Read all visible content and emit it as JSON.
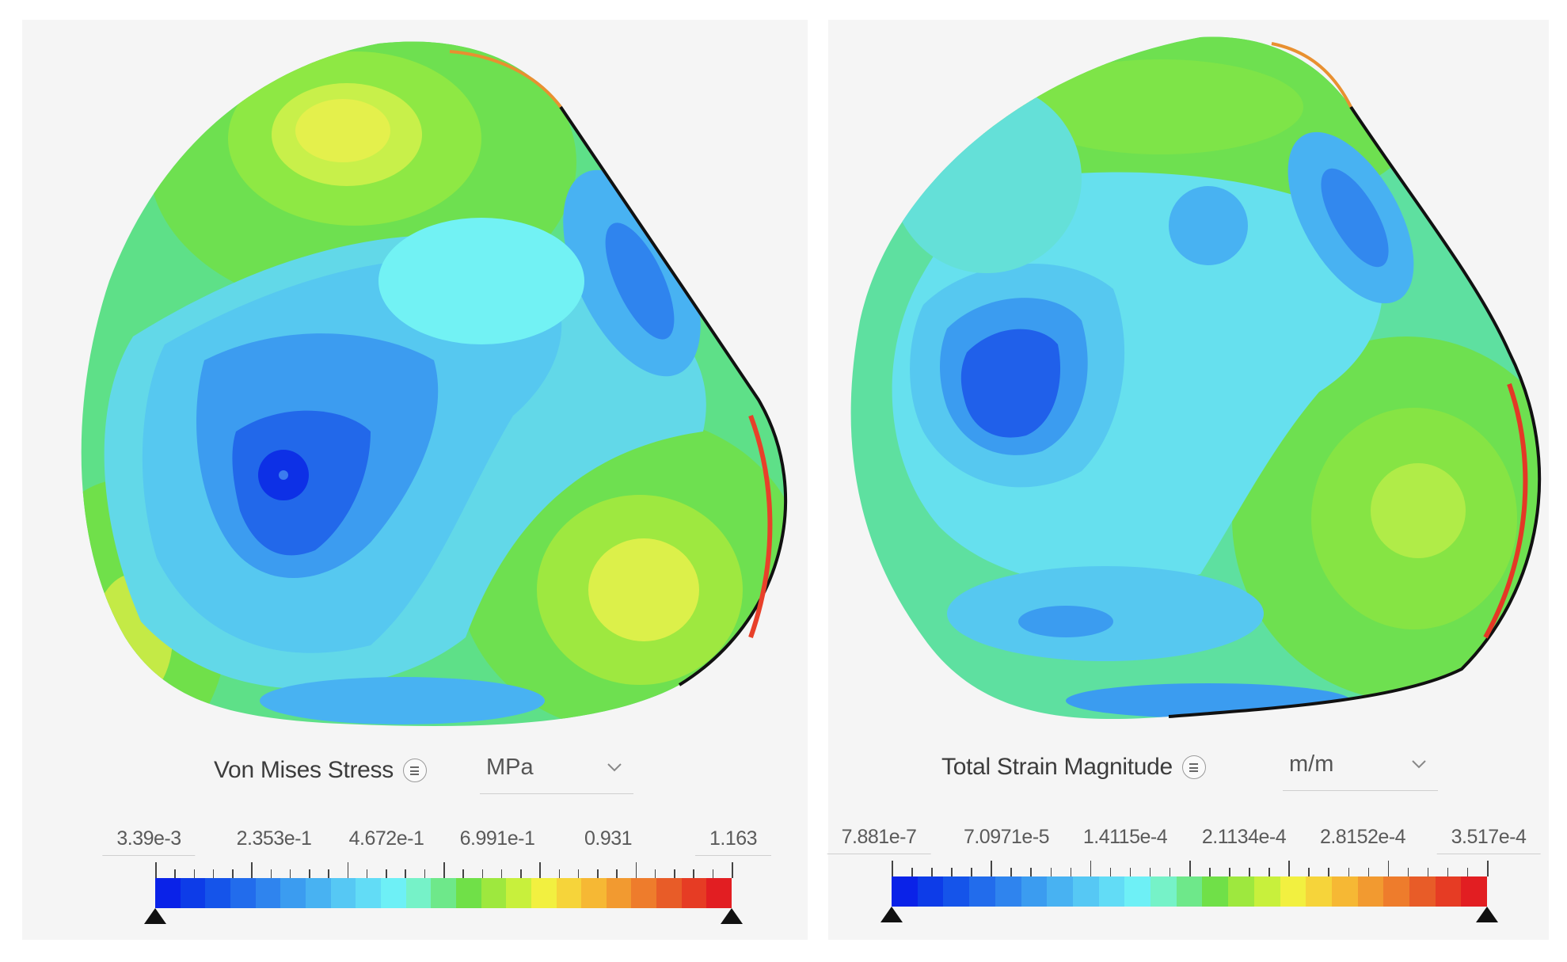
{
  "left_panel": {
    "title": "Von Mises Stress",
    "unit": "MPa",
    "legend_labels": [
      "3.39e-3",
      "2.353e-1",
      "4.672e-1",
      "6.991e-1",
      "0.931",
      "1.163"
    ],
    "min_value": 0.00339,
    "max_value": 1.163
  },
  "right_panel": {
    "title": "Total Strain Magnitude",
    "unit": "m/m",
    "legend_labels": [
      "7.881e-7",
      "7.0971e-5",
      "1.4115e-4",
      "2.1134e-4",
      "2.8152e-4",
      "3.517e-4"
    ],
    "min_value": 7.881e-07,
    "max_value": 0.0003517
  },
  "colormap": [
    "#0a22e8",
    "#0d3ce8",
    "#1554ea",
    "#226cec",
    "#2f84ee",
    "#3b9cf0",
    "#48b2f2",
    "#56c8f4",
    "#62dcf6",
    "#6ef0f6",
    "#76f2c8",
    "#6ee88a",
    "#70e048",
    "#9ee83e",
    "#c8f03c",
    "#f2f040",
    "#f6d43a",
    "#f6b834",
    "#f29a30",
    "#ee7c2c",
    "#e85c28",
    "#e63c24",
    "#e21e22"
  ],
  "icons": {
    "menu": "list-menu-icon",
    "dropdown": "chevron-down-icon",
    "handle": "triangle-handle-icon"
  }
}
